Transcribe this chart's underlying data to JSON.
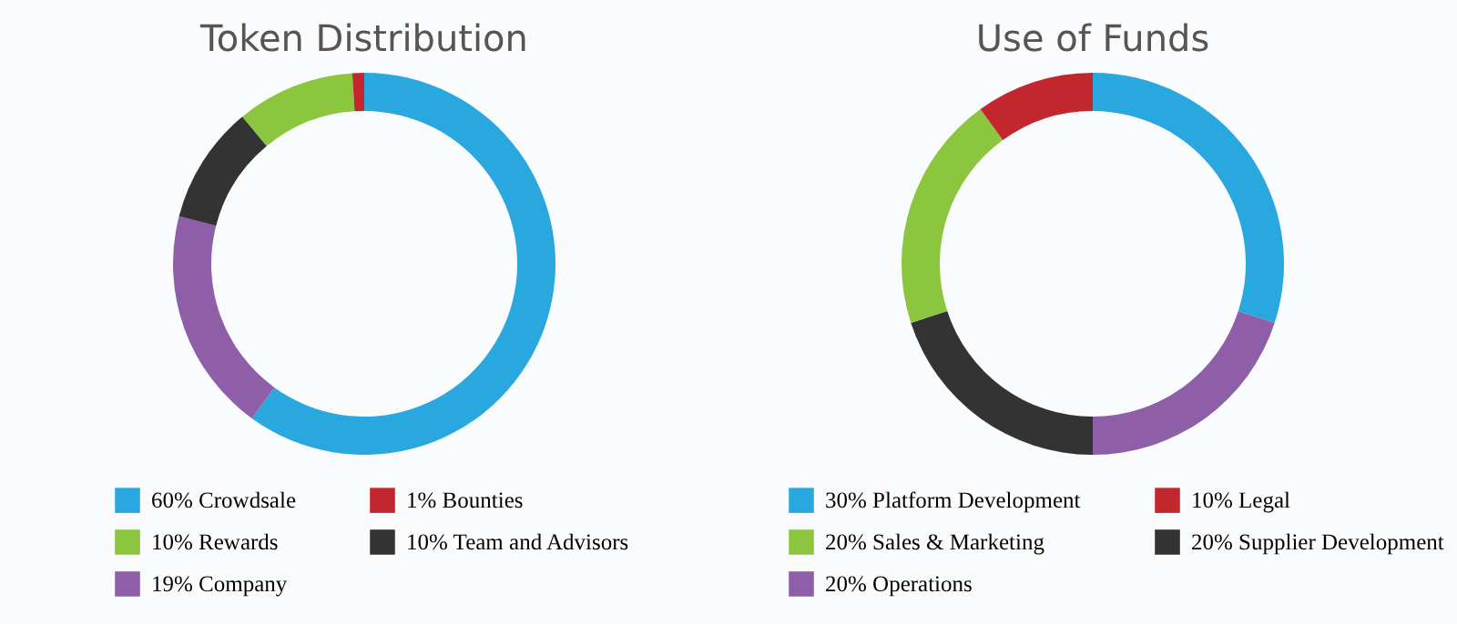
{
  "chart_data": [
    {
      "type": "donut",
      "title": "Token Distribution",
      "categories": [
        "60% Crowdsale",
        "19% Company",
        "10% Team and Advisors",
        "10% Rewards",
        "1% Bounties"
      ],
      "values": [
        60,
        19,
        10,
        10,
        1
      ],
      "colors": [
        "#29a8e0",
        "#8e5ea8",
        "#333333",
        "#8cc63f",
        "#c1272d"
      ],
      "legend": "bottom"
    },
    {
      "type": "donut",
      "title": "Use of Funds",
      "categories": [
        "30% Platform Development",
        "20% Operations",
        "20% Supplier Development",
        "20% Sales & Marketing",
        "10% Legal"
      ],
      "values": [
        30,
        20,
        20,
        20,
        10
      ],
      "colors": [
        "#29a8e0",
        "#8e5ea8",
        "#333333",
        "#8cc63f",
        "#c1272d"
      ],
      "legend": "bottom"
    }
  ]
}
